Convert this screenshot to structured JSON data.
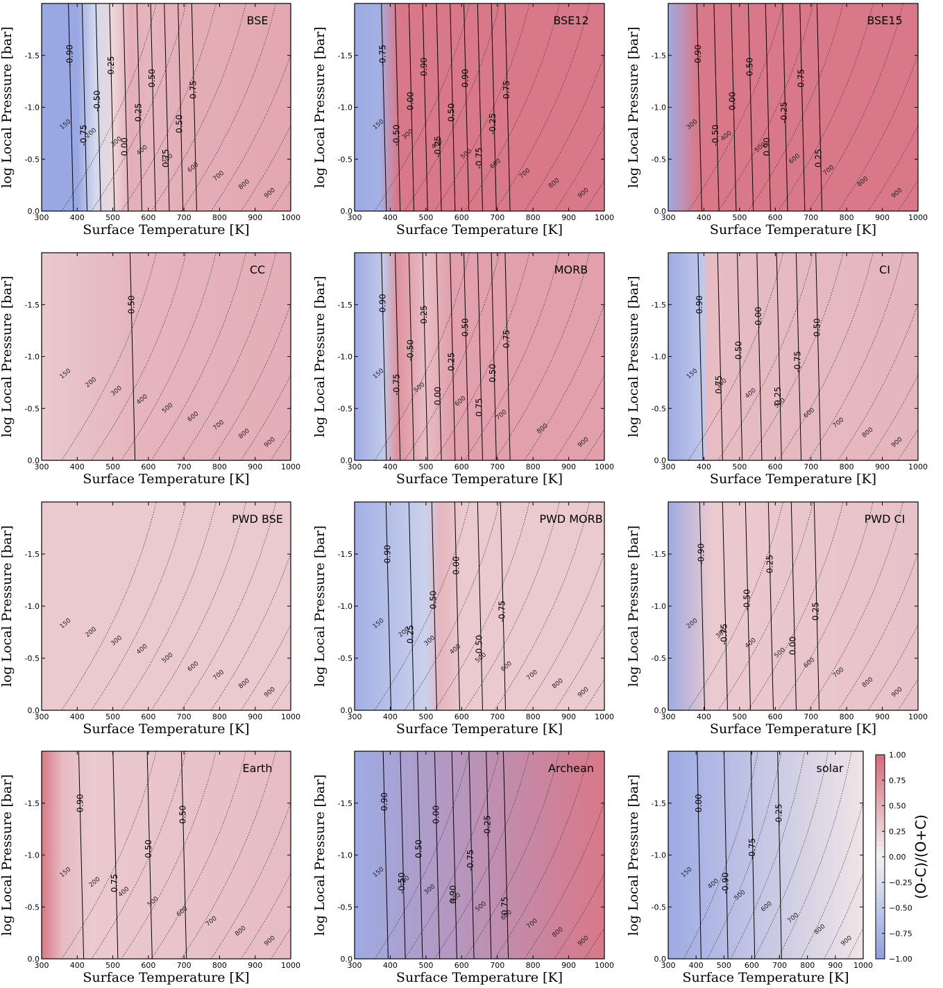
{
  "chart_data": [
    {
      "type": "heatmap",
      "title": "BSE",
      "xlabel": "Surface Temperature [K]",
      "ylabel": "log Local Pressure [bar]",
      "xlim": [
        300,
        1000
      ],
      "ylim": [
        0,
        -2
      ],
      "xticks": [
        300,
        400,
        500,
        600,
        700,
        800,
        900,
        1000
      ],
      "yticks": [
        "0.0",
        "-0.5",
        "-1.0",
        "-1.5"
      ],
      "x": [
        300,
        400,
        450,
        500,
        550,
        600,
        700,
        1000
      ],
      "values": [
        -0.9,
        -0.9,
        -0.3,
        0.2,
        0.5,
        0.45,
        0.5,
        0.55
      ],
      "contour_labels": [
        "-0.90",
        "-0.75",
        "-0.50",
        "-0.25",
        "0.00",
        "0.25",
        "0.50",
        "0.75",
        "0.50",
        "0.75"
      ],
      "isotherms": [
        "150",
        "200",
        "300",
        "400",
        "500",
        "600",
        "700",
        "800",
        "900"
      ]
    },
    {
      "type": "heatmap",
      "title": "BSE12",
      "xlabel": "Surface Temperature [K]",
      "ylabel": "log Local Pressure [bar]",
      "xlim": [
        300,
        1000
      ],
      "ylim": [
        0,
        -2
      ],
      "xticks": [
        300,
        400,
        500,
        600,
        700,
        800,
        900,
        1000
      ],
      "yticks": [
        "0.0",
        "-0.5",
        "-1.0",
        "-1.5"
      ],
      "x": [
        300,
        370,
        420,
        480,
        1000
      ],
      "values": [
        -0.85,
        -0.8,
        0.9,
        0.9,
        0.9
      ],
      "contour_labels": [
        "-0.75",
        "-0.50",
        "0.00",
        "0.90",
        "-0.25",
        "0.50",
        "0.90",
        "-0.75",
        "-0.25",
        "0.75"
      ],
      "isotherms": [
        "150",
        "300",
        "400",
        "500",
        "600",
        "700",
        "800",
        "900"
      ]
    },
    {
      "type": "heatmap",
      "title": "BSE15",
      "xlabel": "Surface Temperature [K]",
      "ylabel": "log Local Pressure [bar]",
      "xlim": [
        300,
        1000
      ],
      "ylim": [
        0,
        -2
      ],
      "xticks": [
        300,
        400,
        500,
        600,
        700,
        800,
        900,
        1000
      ],
      "yticks": [
        "0.0",
        "-0.5",
        "-1.0",
        "-1.5"
      ],
      "x": [
        300,
        380,
        430,
        1000
      ],
      "values": [
        -0.85,
        0.9,
        0.9,
        0.9
      ],
      "contour_labels": [
        "-0.90",
        "-0.50",
        "0.00",
        "0.50",
        "0.90",
        "-0.25",
        "0.75",
        "0.25"
      ],
      "isotherms": [
        "300",
        "400",
        "500",
        "600",
        "700",
        "800",
        "900"
      ]
    },
    {
      "type": "heatmap",
      "title": "CC",
      "xlabel": "Surface Temperature [K]",
      "ylabel": "log Local Pressure [bar]",
      "xlim": [
        300,
        1000
      ],
      "ylim": [
        0,
        -2
      ],
      "xticks": [
        300,
        400,
        500,
        600,
        700,
        800,
        900,
        1000
      ],
      "yticks": [
        "0.0",
        "-0.5",
        "-1.0",
        "-1.5"
      ],
      "x": [
        300,
        560,
        1000
      ],
      "values": [
        0.3,
        0.45,
        0.5
      ],
      "contour_labels": [
        "0.50"
      ],
      "isotherms": [
        "150",
        "200",
        "300",
        "400",
        "500",
        "600",
        "700",
        "800",
        "900"
      ]
    },
    {
      "type": "heatmap",
      "title": "MORB",
      "xlabel": "Surface Temperature [K]",
      "ylabel": "log Local Pressure [bar]",
      "xlim": [
        300,
        1000
      ],
      "ylim": [
        0,
        -2
      ],
      "xticks": [
        300,
        400,
        500,
        600,
        700,
        800,
        900,
        1000
      ],
      "yticks": [
        "0.0",
        "-0.5",
        "-1.0",
        "-1.5"
      ],
      "x": [
        300,
        380,
        420,
        500,
        570,
        1000
      ],
      "values": [
        -0.85,
        -0.5,
        0.7,
        0.4,
        0.6,
        0.6
      ],
      "contour_labels": [
        "-0.90",
        "-0.75",
        "-0.50",
        "-0.25",
        "0.00",
        "0.25",
        "0.50",
        "0.75",
        "0.50",
        "0.75"
      ],
      "isotherms": [
        "150",
        "500",
        "600",
        "700",
        "800",
        "900"
      ]
    },
    {
      "type": "heatmap",
      "title": "CI",
      "xlabel": "Surface Temperature [K]",
      "ylabel": "log Local Pressure [bar]",
      "xlim": [
        300,
        1000
      ],
      "ylim": [
        0,
        -2
      ],
      "xticks": [
        300,
        400,
        500,
        600,
        700,
        800,
        900,
        1000
      ],
      "yticks": [
        "0.0",
        "-0.5",
        "-1.0",
        "-1.5"
      ],
      "x": [
        300,
        400,
        410,
        1000
      ],
      "values": [
        -0.85,
        -0.5,
        0.4,
        0.45
      ],
      "contour_labels": [
        "0.90",
        "0.75",
        "0.50",
        "0.00",
        "0.25",
        "-0.75",
        "0.50"
      ],
      "isotherms": [
        "150",
        "300",
        "400",
        "500",
        "600",
        "700",
        "800",
        "900"
      ]
    },
    {
      "type": "heatmap",
      "title": "PWD BSE",
      "xlabel": "Surface Temperature [K]",
      "ylabel": "log Local Pressure [bar]",
      "xlim": [
        300,
        1000
      ],
      "ylim": [
        0,
        -2
      ],
      "xticks": [
        300,
        400,
        500,
        600,
        700,
        800,
        900,
        1000
      ],
      "yticks": [
        "0.0",
        "-0.5",
        "-1.0",
        "-1.5"
      ],
      "x": [
        300,
        1000
      ],
      "values": [
        0.3,
        0.3
      ],
      "contour_labels": [],
      "isotherms": [
        "150",
        "200",
        "300",
        "400",
        "500",
        "600",
        "700",
        "800",
        "900"
      ]
    },
    {
      "type": "heatmap",
      "title": "PWD MORB",
      "xlabel": "Surface Temperature [K]",
      "ylabel": "log Local Pressure [bar]",
      "xlim": [
        300,
        1000
      ],
      "ylim": [
        0,
        -2
      ],
      "xticks": [
        300,
        400,
        500,
        600,
        700,
        800,
        900,
        1000
      ],
      "yticks": [
        "0.0",
        "-0.5",
        "-1.0",
        "-1.5"
      ],
      "x": [
        300,
        500,
        540,
        600,
        1000
      ],
      "values": [
        -0.8,
        -0.4,
        0.45,
        0.3,
        0.3
      ],
      "contour_labels": [
        "0.90",
        "0.25",
        "0.50",
        "0.00",
        "-0.50",
        "-0.75"
      ],
      "isotherms": [
        "150",
        "200",
        "300",
        "400",
        "500",
        "600",
        "700",
        "800",
        "900"
      ]
    },
    {
      "type": "heatmap",
      "title": "PWD CI",
      "xlabel": "Surface Temperature [K]",
      "ylabel": "log Local Pressure [bar]",
      "xlim": [
        300,
        1000
      ],
      "ylim": [
        0,
        -2
      ],
      "xticks": [
        300,
        400,
        500,
        600,
        700,
        800,
        900,
        1000
      ],
      "yticks": [
        "0.0",
        "-0.5",
        "-1.0",
        "-1.5"
      ],
      "x": [
        300,
        420,
        1000
      ],
      "values": [
        -0.85,
        0.3,
        0.35
      ],
      "contour_labels": [
        "-0.90",
        "-0.75",
        "-0.50",
        "-0.25",
        "0.00",
        "0.25"
      ],
      "isotherms": [
        "200",
        "300",
        "400",
        "500",
        "600",
        "700",
        "800",
        "900"
      ]
    },
    {
      "type": "heatmap",
      "title": "Earth",
      "xlabel": "Surface Temperature [K]",
      "ylabel": "log Local Pressure [bar]",
      "xlim": [
        300,
        1000
      ],
      "ylim": [
        0,
        -2
      ],
      "xticks": [
        300,
        400,
        500,
        600,
        700,
        800,
        900,
        1000
      ],
      "yticks": [
        "0.0",
        "-0.5",
        "-1.0",
        "-1.5"
      ],
      "x": [
        300,
        360,
        440,
        1000
      ],
      "values": [
        0.9,
        0.4,
        0.3,
        0.4
      ],
      "contour_labels": [
        "0.90",
        "0.75",
        "0.50",
        "0.50"
      ],
      "isotherms": [
        "150",
        "200",
        "400",
        "500",
        "600",
        "700",
        "800",
        "900"
      ]
    },
    {
      "type": "heatmap",
      "title": "Archean",
      "xlabel": "Surface Temperature [K]",
      "ylabel": "log Local Pressure [bar]",
      "xlim": [
        300,
        1000
      ],
      "ylim": [
        0,
        -2
      ],
      "xticks": [
        300,
        400,
        500,
        600,
        700,
        800,
        900,
        1000
      ],
      "yticks": [
        "0.0",
        "-0.5",
        "-1.0",
        "-1.5"
      ],
      "x": [
        300,
        1000
      ],
      "values": [
        -0.85,
        0.9
      ],
      "contour_labels": [
        "-0.90",
        "-0.50",
        "0.50",
        "0.00",
        "0.90",
        "-0.75",
        "-0.25",
        "0.75"
      ],
      "isotherms": [
        "150",
        "200",
        "300",
        "400",
        "500",
        "600",
        "700",
        "800",
        "900"
      ]
    },
    {
      "type": "heatmap",
      "title": "solar",
      "xlabel": "Surface Temperature [K]",
      "ylabel": "log Local Pressure [bar]",
      "xlim": [
        300,
        1000
      ],
      "ylim": [
        0,
        -2
      ],
      "xticks": [
        300,
        400,
        500,
        600,
        700,
        800,
        900,
        1000
      ],
      "yticks": [
        "0.0",
        "-0.5",
        "-1.0",
        "-1.5"
      ],
      "x": [
        300,
        1000
      ],
      "values": [
        -0.85,
        0.1
      ],
      "contour_labels": [
        "0.00",
        "-0.90",
        "-0.75",
        "-0.25"
      ],
      "isotherms": [
        "150",
        "400",
        "500",
        "600",
        "700",
        "800",
        "900"
      ]
    }
  ],
  "colorbar": {
    "label": "(O-C)/(O+C)",
    "ticks": [
      "1.00",
      "0.75",
      "0.50",
      "0.25",
      "0.00",
      "−0.25",
      "−0.50",
      "−0.75",
      "−1.00"
    ],
    "range": [
      -1,
      1
    ],
    "colors": {
      "neg": "#8f9fe0",
      "mid": "#f2f2f2",
      "pos": "#d66a7c"
    }
  }
}
